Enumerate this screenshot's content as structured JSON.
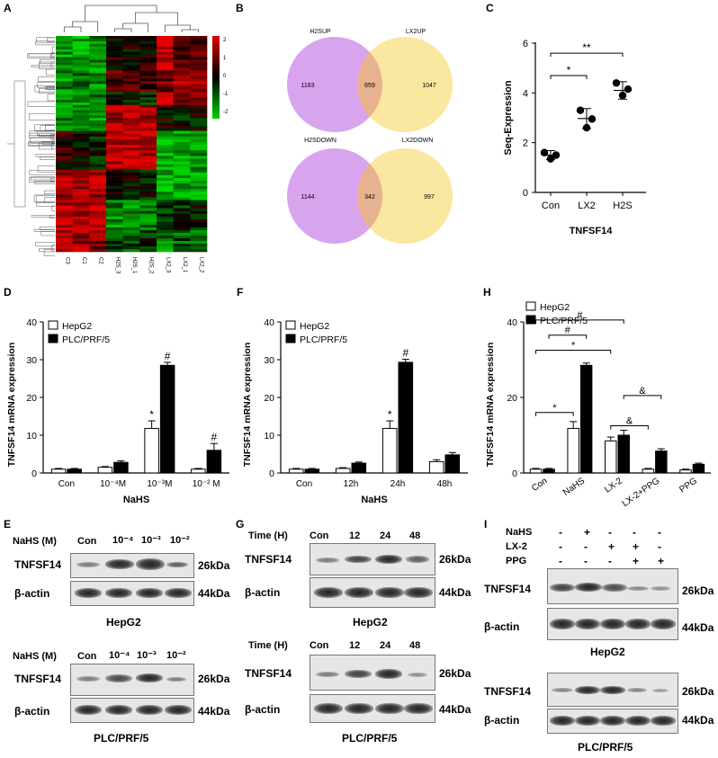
{
  "panel_letters": {
    "A": "A",
    "B": "B",
    "C": "C",
    "D": "D",
    "E": "E",
    "F": "F",
    "G": "G",
    "H": "H",
    "I": "I"
  },
  "heatmap": {
    "samples": [
      "C3",
      "C1",
      "C2",
      "H2S_3",
      "H2S_1",
      "H2S_2",
      "LX2_3",
      "LX2_1",
      "LX2_2"
    ],
    "scale_ticks": [
      "2",
      "1",
      "0",
      "-1",
      "-2"
    ],
    "colors": {
      "high": "#e00000",
      "mid": "#000000",
      "low": "#00d000"
    }
  },
  "venn": {
    "up": {
      "left_label": "H2SUP",
      "right_label": "LX2UP",
      "left": "1183",
      "both": "659",
      "right": "1047"
    },
    "down": {
      "left_label": "H2SDOWN",
      "right_label": "LX2DOWN",
      "left": "1144",
      "both": "342",
      "right": "997"
    },
    "colors": {
      "left": "#d9a4ee",
      "right": "#fbe8a0",
      "overlap": "#e9b28e"
    }
  },
  "seq_chart": {
    "chart_data": {
      "type": "scatter",
      "ylabel": "Seq-Expression",
      "xlabel": "TNFSF14",
      "categories": [
        "Con",
        "LX2",
        "H2S"
      ],
      "points": [
        [
          1.6,
          1.5,
          1.35
        ],
        [
          3.3,
          2.95,
          2.6
        ],
        [
          4.4,
          4.15,
          3.9
        ]
      ],
      "means": [
        1.5,
        2.97,
        4.1
      ],
      "sd": [
        0.18,
        0.4,
        0.35
      ],
      "ylim": [
        0,
        6
      ],
      "yticks": [
        "0",
        "2",
        "4",
        "6"
      ],
      "sig": [
        {
          "from": 0,
          "to": 1,
          "label": "*"
        },
        {
          "from": 0,
          "to": 2,
          "label": "**"
        }
      ]
    }
  },
  "mrna_charts": [
    {
      "id": "D",
      "chart_data": {
        "type": "bar",
        "ylabel": "TNFSF14 mRNA expression",
        "xlabel": "NaHS",
        "categories": [
          "Con",
          "10⁻⁴M",
          "10⁻³M",
          "10⁻² M"
        ],
        "series": [
          {
            "name": "HepG2",
            "values": [
              1,
              1.5,
              11.8,
              1
            ],
            "err": [
              0.2,
              0.2,
              2,
              0.2
            ],
            "marks": [
              "",
              "",
              "*",
              ""
            ]
          },
          {
            "name": "PLC/PRF/5",
            "values": [
              1,
              2.8,
              28.5,
              6
            ],
            "err": [
              0.2,
              0.4,
              0.8,
              1.8
            ],
            "marks": [
              "",
              "",
              "#",
              "#"
            ]
          }
        ],
        "ylim": [
          0,
          40
        ],
        "yticks": [
          "0",
          "10",
          "20",
          "30",
          "40"
        ]
      }
    },
    {
      "id": "F",
      "chart_data": {
        "type": "bar",
        "ylabel": "TNFSF14 mRNA expression",
        "xlabel": "NaHS",
        "categories": [
          "Con",
          "12h",
          "24h",
          "48h"
        ],
        "series": [
          {
            "name": "HepG2",
            "values": [
              1,
              1.2,
              11.8,
              3
            ],
            "err": [
              0.2,
              0.2,
              2,
              0.5
            ],
            "marks": [
              "",
              "",
              "*",
              ""
            ]
          },
          {
            "name": "PLC/PRF/5",
            "values": [
              1,
              2.6,
              29.3,
              4.8
            ],
            "err": [
              0.2,
              0.3,
              0.8,
              0.6
            ],
            "marks": [
              "",
              "",
              "#",
              ""
            ]
          }
        ],
        "ylim": [
          0,
          40
        ],
        "yticks": [
          "0",
          "10",
          "20",
          "30",
          "40"
        ]
      }
    },
    {
      "id": "H",
      "chart_data": {
        "type": "bar",
        "ylabel": "TNFSF14 mRNA expression",
        "xlabel": "",
        "categories": [
          "Con",
          "NaHS",
          "LX-2",
          "LX-2+PPG",
          "PPG"
        ],
        "series": [
          {
            "name": "HepG2",
            "values": [
              1,
              11.8,
              8.5,
              1,
              0.8
            ],
            "err": [
              0.2,
              1.8,
              1,
              0.2,
              0.2
            ],
            "marks": [
              "",
              "",
              "",
              "",
              ""
            ]
          },
          {
            "name": "PLC/PRF/5",
            "values": [
              1,
              28.5,
              10,
              5.8,
              2.3
            ],
            "err": [
              0.2,
              0.6,
              1.3,
              0.6,
              0.3
            ],
            "marks": [
              "",
              "",
              "",
              "",
              ""
            ]
          }
        ],
        "ylim": [
          0,
          40
        ],
        "yticks": [
          "0",
          "20",
          "40"
        ],
        "brackets": [
          {
            "from": [
              0,
              0
            ],
            "to": [
              1,
              0
            ],
            "y": 16,
            "label": "*"
          },
          {
            "from": [
              0,
              0
            ],
            "to": [
              2,
              0
            ],
            "y": 32.5,
            "label": "*"
          },
          {
            "from": [
              0,
              1
            ],
            "to": [
              1,
              1
            ],
            "y": 36.5,
            "label": "#"
          },
          {
            "from": [
              0,
              0
            ],
            "to": [
              2,
              1
            ],
            "y": 40.5,
            "label": "#"
          },
          {
            "from": [
              2,
              0
            ],
            "to": [
              3,
              0
            ],
            "y": 12.5,
            "label": "&"
          },
          {
            "from": [
              2,
              1
            ],
            "to": [
              3,
              1
            ],
            "y": 20.5,
            "label": "&"
          }
        ]
      }
    }
  ],
  "blots": {
    "E_top": {
      "header_label": "NaHS  (M)",
      "lanes": [
        "Con",
        "10⁻⁴",
        "10⁻³",
        "10⁻²"
      ],
      "caption": "HepG2",
      "rows": [
        "TNFSF14",
        "β-actin"
      ],
      "kda": [
        "26kDa",
        "44kDa"
      ]
    },
    "E_bot": {
      "header_label": "NaHS  (M)",
      "lanes": [
        "Con",
        "10⁻⁴",
        "10⁻³",
        "10⁻²"
      ],
      "caption": "PLC/PRF/5",
      "rows": [
        "TNFSF14",
        "β-actin"
      ],
      "kda": [
        "26kDa",
        "44kDa"
      ]
    },
    "G_top": {
      "header_label": "Time (H)",
      "lanes": [
        "Con",
        "12",
        "24",
        "48"
      ],
      "caption": "HepG2",
      "rows": [
        "TNFSF14",
        "β-actin"
      ],
      "kda": [
        "26kDa",
        "44kDa"
      ]
    },
    "G_bot": {
      "header_label": "Time (H)",
      "lanes": [
        "Con",
        "12",
        "24",
        "48"
      ],
      "caption": "PLC/PRF/5",
      "rows": [
        "TNFSF14",
        "β-actin"
      ],
      "kda": [
        "26kDa",
        "44kDa"
      ]
    },
    "I_top": {
      "conditions": [
        {
          "name": "NaHS",
          "signs": [
            "-",
            "+",
            "-",
            "-",
            "-"
          ]
        },
        {
          "name": "LX-2",
          "signs": [
            "-",
            "-",
            "+",
            "+",
            "-"
          ]
        },
        {
          "name": "PPG",
          "signs": [
            "-",
            "-",
            "-",
            "+",
            "+"
          ]
        }
      ],
      "caption": "HepG2",
      "rows": [
        "TNFSF14",
        "β-actin"
      ],
      "kda": [
        "26kDa",
        "44kDa"
      ]
    },
    "I_bot": {
      "caption": "PLC/PRF/5",
      "rows": [
        "TNFSF14",
        "β-actin"
      ],
      "kda": [
        "26kDa",
        "44kDa"
      ]
    }
  }
}
